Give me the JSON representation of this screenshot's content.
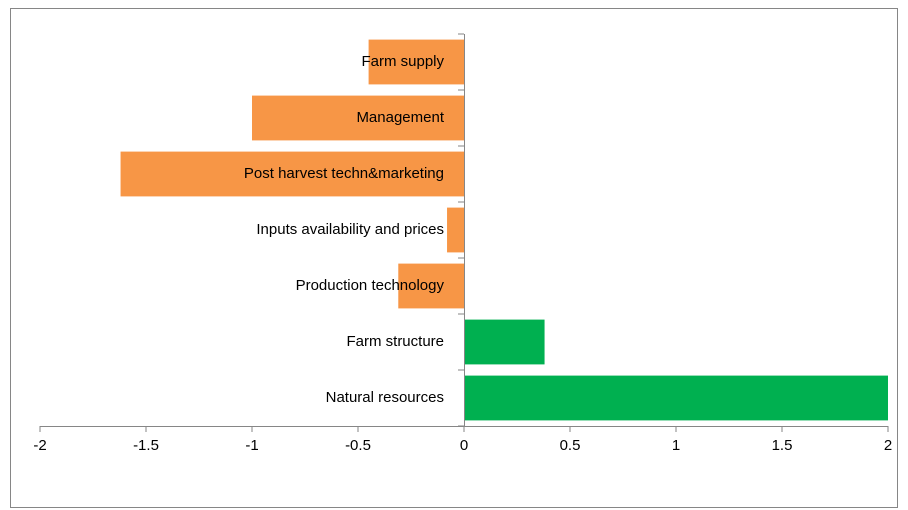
{
  "chart_data": {
    "type": "barh",
    "categories": [
      "Natural resources",
      "Farm structure",
      "Production technology",
      "Inputs availability  and prices",
      "Post harvest techn&marketing",
      "Management",
      "Farm supply"
    ],
    "values": [
      2.0,
      0.38,
      -0.31,
      -0.08,
      -1.62,
      -1.0,
      -0.45
    ],
    "colors": [
      "#00b050",
      "#00b050",
      "#f79646",
      "#f79646",
      "#f79646",
      "#f79646",
      "#f79646"
    ],
    "xlim": [
      -2,
      2
    ],
    "xticks": [
      -2,
      -1.5,
      -1,
      -0.5,
      0,
      0.5,
      1,
      1.5,
      2
    ]
  }
}
